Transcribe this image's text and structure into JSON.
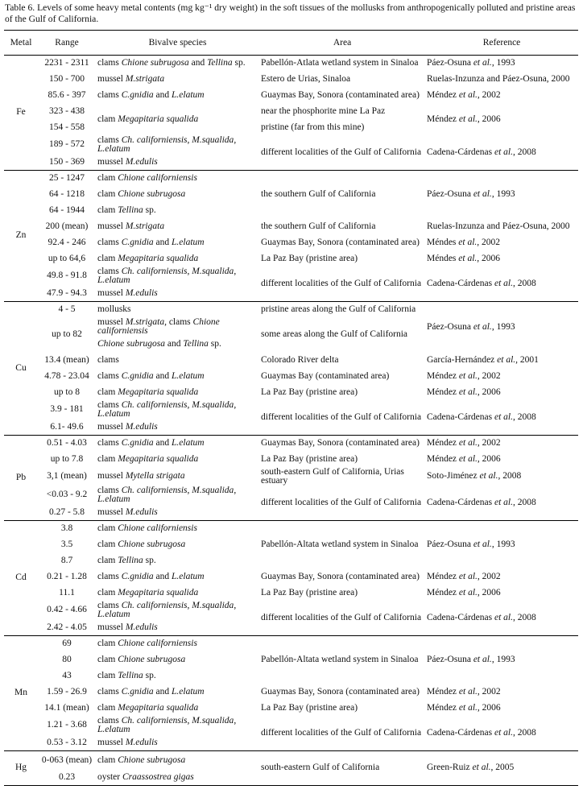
{
  "caption": "Table 6. Levels of some heavy metal contents (mg kg⁻¹ dry weight) in the soft tissues of the mollusks from anthropogenically polluted and pristine areas of the Gulf of California.",
  "headers": [
    "Metal",
    "Range",
    "Bivalve species",
    "Area",
    "Reference"
  ],
  "groups": [
    {
      "metal": "Fe",
      "rows": [
        [
          "2231 - 2311",
          "clams  *Chione subrugosa* and *Tellina* sp.",
          "Pabellón-Atlata wetland system in Sinaloa",
          "Páez-Osuna *et al.*, 1993"
        ],
        [
          "150 - 700",
          "mussel *M.strigata*",
          "Estero de Urias, Sinaloa",
          "Ruelas-Inzunza and Páez-Osuna, 2000"
        ],
        [
          "85.6 - 397",
          "clams *C.gnidia* and *L.elatum*",
          "Guaymas Bay, Sonora (contaminated area)",
          "Méndez *et al.*, 2002"
        ],
        [
          "323 - 438",
          "clam *Megapitaria squalida*",
          "near the phosphorite mine La Paz",
          "Méndez *et al.*, 2006"
        ],
        [
          "154 - 558",
          null,
          "pristine (far from this mine)",
          null
        ],
        [
          "189 - 572",
          "clams *Ch. californiensis*, *M.squalida*, *L.elatum*",
          "different localities of the Gulf of California",
          "Cadena-Cárdenas *et al.*, 2008"
        ],
        [
          "150 - 369",
          "mussel *M.edulis*",
          null,
          null
        ]
      ]
    },
    {
      "metal": "Zn",
      "rows": [
        [
          "25 - 1247",
          "clam  *Chione californiensis*",
          "the southern Gulf of California",
          "Páez-Osuna *et al.*, 1993"
        ],
        [
          "64 - 1218",
          "clam  *Chione subrugosa*",
          null,
          null
        ],
        [
          "64 - 1944",
          "clam *Tellina* sp.",
          null,
          null
        ],
        [
          "200 (mean)",
          "mussel *M.strigata*",
          "the southern Gulf of California",
          "Ruelas-Inzunza and Páez-Osuna, 2000"
        ],
        [
          "92.4 - 246",
          "clams *C.gnidia* and *L.elatum*",
          "Guaymas Bay, Sonora (contaminated area)",
          "Méndes *et al.*, 2002"
        ],
        [
          "up to 64,6",
          "clam *Megapitaria squalida*",
          "La Paz Bay (pristine area)",
          "Méndes *et al.*, 2006"
        ],
        [
          "49.8 - 91.8",
          "clams *Ch. californiensis*, *M.squalida*, *L.elatum*",
          "different localities of the Gulf of California",
          "Cadena-Cárdenas *et al.*, 2008"
        ],
        [
          "47.9 - 94.3",
          "mussel *M.edulis*",
          null,
          null
        ]
      ]
    },
    {
      "metal": "Cu",
      "rows": [
        [
          "4 - 5",
          "mollusks",
          "pristine areas along the Gulf of California",
          "Páez-Osuna *et al.*, 1993"
        ],
        [
          "up to 82",
          "mussel *M.strigata*, clams *Chione californiensis*",
          "some areas along the Gulf of California",
          null
        ],
        [
          null,
          "*Chione subrugosa* and *Tellina* sp.",
          null,
          null
        ],
        [
          "13.4 (mean)",
          "clams",
          "Colorado River delta",
          "García-Hernández *et al.*, 2001"
        ],
        [
          "4.78 - 23.04",
          "clams *C.gnidia* and *L.elatum*",
          "Guaymas Bay (contaminated area)",
          "Méndez *et al.*, 2002"
        ],
        [
          "up to 8",
          "clam *Megapitaria squalida*",
          "La Paz Bay (pristine area)",
          "Méndez *et al.*, 2006"
        ],
        [
          "3.9 - 181",
          "clams *Ch. californiensis*, *M.squalida*, *L.elatum*",
          "different localities of the Gulf of California",
          "Cadena-Cárdenas *et al.*, 2008"
        ],
        [
          "6.1- 49.6",
          "mussel *M.edulis*",
          null,
          null
        ]
      ]
    },
    {
      "metal": "Pb",
      "rows": [
        [
          "0.51 - 4.03",
          "clams *C.gnidia* and *L.elatum*",
          "Guaymas Bay, Sonora (contaminated area)",
          "Méndez *et al.*, 2002"
        ],
        [
          "up to 7.8",
          "clam *Megapitaria squalida*",
          "La Paz Bay (pristine area)",
          "Méndez *et al.*, 2006"
        ],
        [
          "3,1 (mean)",
          "mussel *Mytella strigata*",
          "south-eastern Gulf of California, Urias estuary",
          "Soto-Jiménez *et al.*, 2008"
        ],
        [
          "<0.03 - 9.2",
          "clams *Ch. californiensis*, *M.squalida*, *L.elatum*",
          "different localities of the Gulf of California",
          "Cadena-Cárdenas *et al.*, 2008"
        ],
        [
          "0.27 - 5.8",
          "mussel *M.edulis*",
          null,
          null
        ]
      ]
    },
    {
      "metal": "Cd",
      "rows": [
        [
          "3.8",
          "clam  *Chione californiensis*",
          "Pabellón-Altata wetland system in Sinaloa",
          "Páez-Osuna *et al.*, 1993"
        ],
        [
          "3.5",
          "clam  *Chione subrugosa*",
          null,
          null
        ],
        [
          "8.7",
          "clam *Tellina* sp.",
          null,
          null
        ],
        [
          "0.21 - 1.28",
          "clams *C.gnidia* and *L.elatum*",
          "Guaymas Bay, Sonora (contaminated area)",
          "Méndez *et al.*, 2002"
        ],
        [
          "11.1",
          "clam *Megapitaria squalida*",
          "La Paz Bay (pristine area)",
          "Méndez *et al.*, 2006"
        ],
        [
          "0.42 - 4.66",
          "clams *Ch. californiensis*, *M.squalida*, *L.elatum*",
          "different localities of the Gulf of California",
          "Cadena-Cárdenas *et al.*, 2008"
        ],
        [
          "2.42 - 4.05",
          "mussel *M.edulis*",
          null,
          null
        ]
      ]
    },
    {
      "metal": "Mn",
      "rows": [
        [
          "69",
          "clam *Chione californiensis*",
          "Pabellón-Altata wetland system in Sinaloa",
          "Páez-Osuna *et al.*, 1993"
        ],
        [
          "80",
          "clam  *Chione subrugosa*",
          null,
          null
        ],
        [
          "43",
          "clam *Tellina* sp.",
          null,
          null
        ],
        [
          "1.59 - 26.9",
          "clams *C.gnidia* and *L.elatum*",
          "Guaymas Bay, Sonora (contaminated area)",
          "Méndez *et al.*, 2002"
        ],
        [
          "14.1 (mean)",
          "clam *Megapitaria squalida*",
          "La Paz Bay (pristine area)",
          "Méndez *et al.*, 2006"
        ],
        [
          "1.21 - 3.68",
          "clams *Ch. californiensis*, *M.squalida*, *L.elatum*",
          "different localities of the Gulf of California",
          "Cadena-Cárdenas *et al.*, 2008"
        ],
        [
          "0.53 - 3.12",
          "mussel *M.edulis*",
          null,
          null
        ]
      ]
    },
    {
      "metal": "Hg",
      "rows": [
        [
          "0-063 (mean)",
          "clam  *Chione subrugosa*",
          "south-eastern Gulf of California",
          "Green-Ruiz *et al.*, 2005"
        ],
        [
          "0.23",
          "oyster *Craassostrea gigas*",
          null,
          null
        ]
      ]
    }
  ]
}
